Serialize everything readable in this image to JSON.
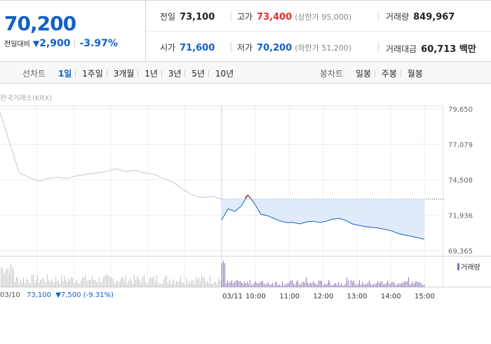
{
  "summary": {
    "current_price": "70,200",
    "change_label": "전일대비",
    "change_amount": "2,900",
    "change_pct": "-3.97%",
    "prev_close": {
      "label": "전일",
      "value": "73,100"
    },
    "high": {
      "label": "고가",
      "value": "73,400",
      "sub": "(상한가 95,000)"
    },
    "volume": {
      "label": "거래량",
      "value": "849,967"
    },
    "open": {
      "label": "시가",
      "value": "71,600"
    },
    "low": {
      "label": "저가",
      "value": "70,200",
      "sub": "(하한가 51,200)"
    },
    "trade_value": {
      "label": "거래대금",
      "value": "60,713 백만"
    }
  },
  "line_tabs": {
    "label": "선차트",
    "items": [
      "1일",
      "1주일",
      "3개월",
      "1년",
      "3년",
      "5년",
      "10년"
    ],
    "active": "1일"
  },
  "candle_tabs": {
    "label": "봉차트",
    "items": [
      "일봉",
      "주봉",
      "월봉"
    ]
  },
  "chart": {
    "source": "한국거래소(KRX)",
    "volume_legend": "거래량",
    "prev_day": {
      "date": "03/10",
      "close": "73,100",
      "change": "▼7,500 (-9.31%)"
    }
  },
  "colors": {
    "down": "#1261c4",
    "up": "#e0302f",
    "prev_line": "#c8c8c8",
    "fill": "#dbe9fb",
    "volume_today": "#8a6fb8",
    "volume_prev": "#c4c4c4"
  },
  "chart_data": {
    "type": "line",
    "y_ticks": [
      "79,650",
      "77,079",
      "74,508",
      "71,936",
      "69,365"
    ],
    "ylim": [
      69365,
      79650
    ],
    "x_ticks": [
      "03/11",
      "10:00",
      "11:00",
      "12:00",
      "13:00",
      "14:00",
      "15:00"
    ],
    "reference_price": 73100,
    "previous_day": {
      "date": "03/10",
      "points": [
        79400,
        77200,
        75000,
        74700,
        74400,
        74600,
        74700,
        74600,
        74800,
        74900,
        75000,
        75100,
        75300,
        75100,
        75200,
        75000,
        74900,
        74600,
        74300,
        73800,
        73400,
        73200,
        73300,
        73100
      ]
    },
    "today": {
      "date": "03/11",
      "points": [
        71600,
        72400,
        72200,
        72600,
        73400,
        72800,
        72000,
        71900,
        71700,
        71500,
        71400,
        71400,
        71300,
        71450,
        71500,
        71400,
        71500,
        71650,
        71700,
        71550,
        71300,
        71200,
        71100,
        71050,
        71000,
        70900,
        70800,
        70600,
        70500,
        70400,
        70300,
        70200
      ]
    }
  }
}
